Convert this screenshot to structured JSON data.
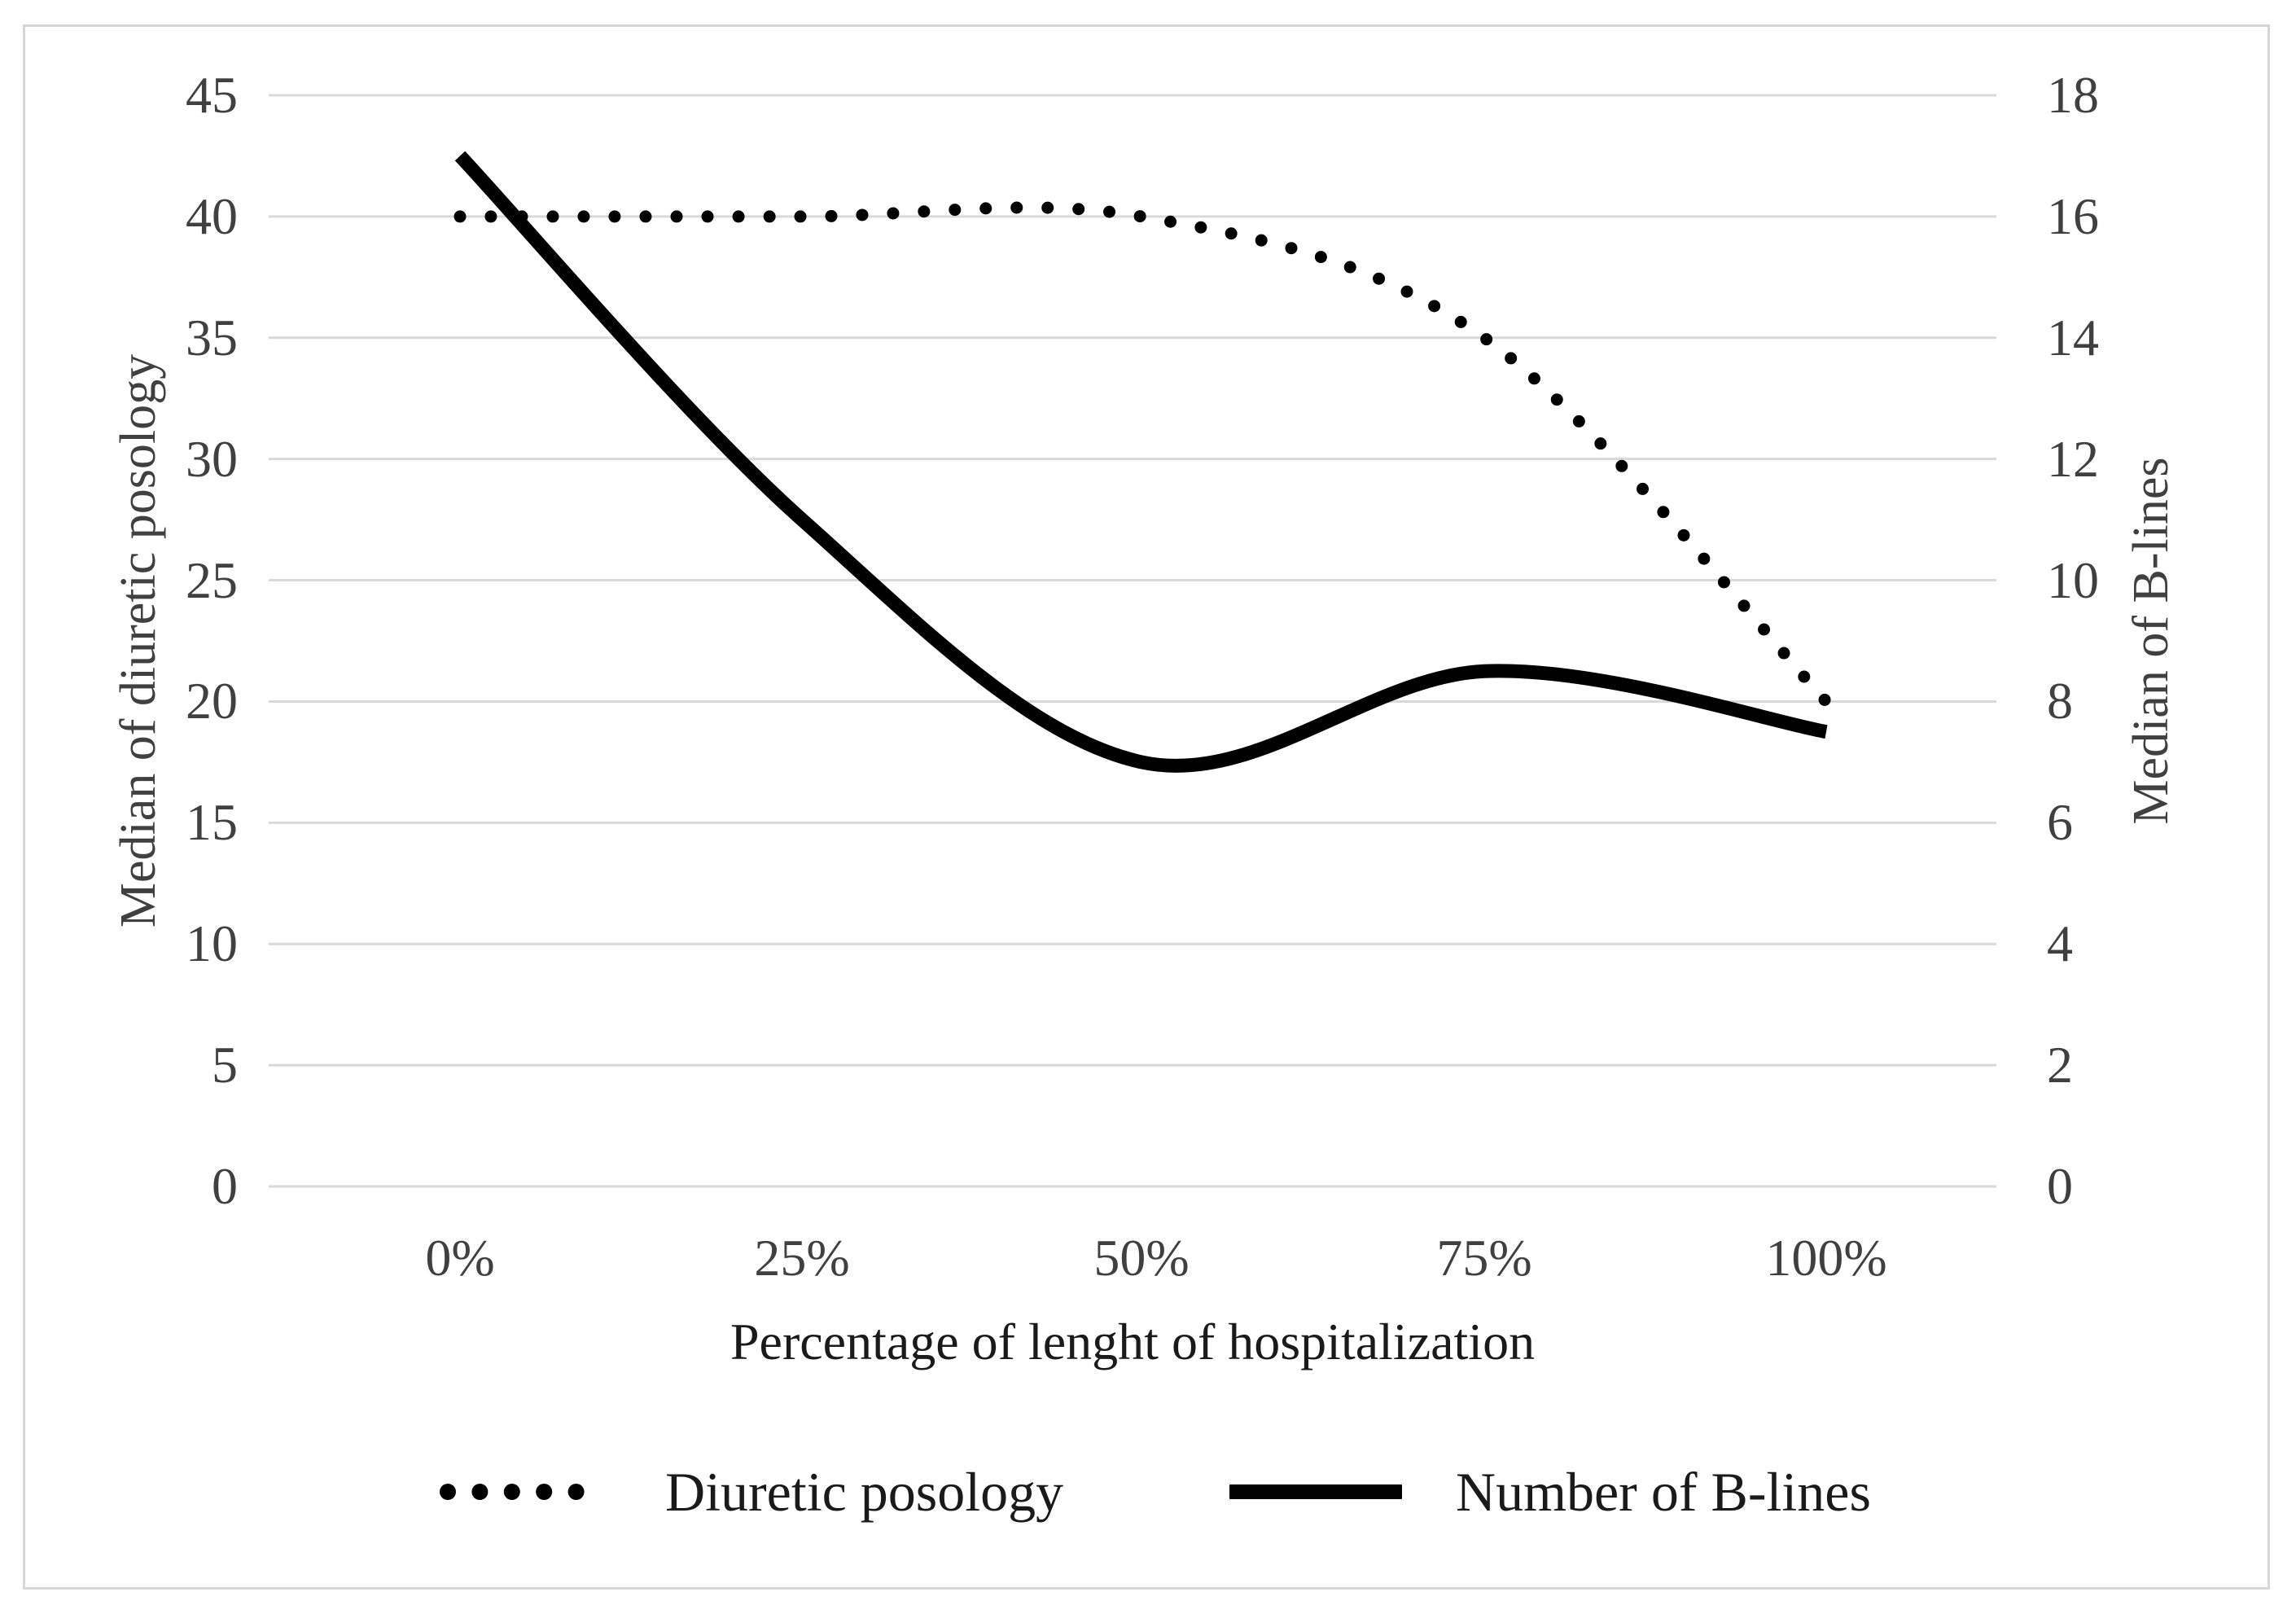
{
  "figure": {
    "background": "#ffffff",
    "border_color": "#d6d6d6"
  },
  "colors": {
    "series_line": "#000000",
    "gridline": "#d9d9d9",
    "tick_text": "#404040",
    "label_text": "#1a1a1a"
  },
  "chart_data": {
    "type": "line",
    "categories": [
      "0%",
      "25%",
      "50%",
      "75%",
      "100%"
    ],
    "series": [
      {
        "name": "Diuretic posology",
        "axis": "left",
        "line_style": "dotted",
        "values": [
          40,
          40,
          40,
          35,
          20
        ]
      },
      {
        "name": "Number of B-lines",
        "axis": "right",
        "line_style": "solid",
        "values": [
          17,
          11,
          7,
          8.5,
          7.5
        ]
      }
    ],
    "left_axis": {
      "label": "Median of diuretic posology",
      "min": 0,
      "max": 45,
      "ticks": [
        0,
        5,
        10,
        15,
        20,
        25,
        30,
        35,
        40,
        45
      ]
    },
    "right_axis": {
      "label": "Median of B-lines",
      "min": 0,
      "max": 18,
      "ticks": [
        0,
        2,
        4,
        6,
        8,
        10,
        12,
        14,
        16,
        18
      ]
    },
    "xlabel": "Percentage of lenght of hospitalization",
    "grid": true,
    "legend_position": "bottom",
    "smooth_lines": true
  }
}
